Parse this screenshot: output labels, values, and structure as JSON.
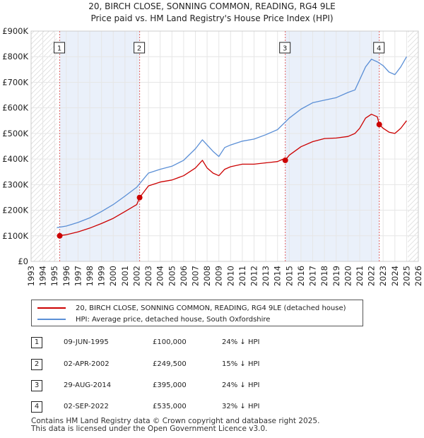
{
  "title_line1": "20, BIRCH CLOSE, SONNING COMMON, READING, RG4 9LE",
  "title_line2": "Price paid vs. HM Land Registry's House Price Index (HPI)",
  "chart_data": {
    "type": "line",
    "title": "20, BIRCH CLOSE, SONNING COMMON, READING, RG4 9LE — Price paid vs. HM Land Registry's House Price Index (HPI)",
    "xlabel": "",
    "ylabel": "",
    "xlim": [
      1993,
      2026
    ],
    "ylim": [
      0,
      900000
    ],
    "x_ticks": [
      1993,
      1994,
      1995,
      1996,
      1997,
      1998,
      1999,
      2000,
      2001,
      2002,
      2003,
      2004,
      2005,
      2006,
      2007,
      2008,
      2009,
      2010,
      2011,
      2012,
      2013,
      2014,
      2015,
      2016,
      2017,
      2018,
      2019,
      2020,
      2021,
      2022,
      2023,
      2024,
      2025,
      2026
    ],
    "y_ticks": [
      0,
      100000,
      200000,
      300000,
      400000,
      500000,
      600000,
      700000,
      800000,
      900000
    ],
    "y_tick_labels": [
      "£0",
      "£100K",
      "£200K",
      "£300K",
      "£400K",
      "£500K",
      "£600K",
      "£700K",
      "£800K",
      "£900K"
    ],
    "hatched_ranges": [
      [
        1993,
        1995.2
      ],
      [
        2025.1,
        2026
      ]
    ],
    "series": [
      {
        "name": "20, BIRCH CLOSE, SONNING COMMON, READING, RG4 9LE (detached house)",
        "color": "#cc0000",
        "x": [
          1995.2,
          1996,
          1997,
          1998,
          1999,
          2000,
          2001,
          2002.0,
          2002.25,
          2003,
          2004,
          2005,
          2006,
          2007,
          2007.6,
          2008,
          2008.5,
          2009,
          2009.5,
          2010,
          2011,
          2012,
          2013,
          2014,
          2014.5,
          2014.66,
          2015,
          2016,
          2017,
          2018,
          2019,
          2020,
          2020.6,
          2021,
          2021.5,
          2022,
          2022.5,
          2022.67,
          2023,
          2023.5,
          2024,
          2024.5,
          2025.0
        ],
        "y": [
          100000,
          104000,
          115000,
          130000,
          148000,
          168000,
          195000,
          222000,
          249500,
          295000,
          310000,
          318000,
          335000,
          365000,
          395000,
          365000,
          345000,
          335000,
          360000,
          370000,
          380000,
          380000,
          385000,
          390000,
          400000,
          395000,
          415000,
          448000,
          468000,
          480000,
          482000,
          488000,
          500000,
          520000,
          560000,
          575000,
          565000,
          535000,
          520000,
          505000,
          500000,
          520000,
          550000
        ]
      },
      {
        "name": "HPI: Average price, detached house, South Oxfordshire",
        "color": "#5b8fd6",
        "x": [
          1995.2,
          1996,
          1997,
          1998,
          1999,
          2000,
          2001,
          2002,
          2003,
          2004,
          2005,
          2006,
          2007,
          2007.6,
          2008,
          2008.5,
          2009,
          2009.5,
          2010,
          2011,
          2012,
          2013,
          2014,
          2015,
          2016,
          2017,
          2018,
          2019,
          2020,
          2020.6,
          2021,
          2021.5,
          2022,
          2022.5,
          2023,
          2023.5,
          2024,
          2024.5,
          2025.0
        ],
        "y": [
          132000,
          138000,
          152000,
          170000,
          195000,
          222000,
          255000,
          290000,
          345000,
          360000,
          372000,
          395000,
          440000,
          475000,
          455000,
          430000,
          410000,
          445000,
          455000,
          470000,
          478000,
          495000,
          515000,
          560000,
          595000,
          620000,
          630000,
          640000,
          660000,
          670000,
          710000,
          760000,
          790000,
          780000,
          765000,
          740000,
          730000,
          760000,
          800000
        ]
      }
    ],
    "transactions": [
      {
        "id": "1",
        "date": "09-JUN-1995",
        "x": 1995.44,
        "price": 100000,
        "price_label": "£100,000",
        "hpi_note": "24% ↓ HPI"
      },
      {
        "id": "2",
        "date": "02-APR-2002",
        "x": 2002.25,
        "price": 249500,
        "price_label": "£249,500",
        "hpi_note": "15% ↓ HPI"
      },
      {
        "id": "3",
        "date": "29-AUG-2014",
        "x": 2014.66,
        "price": 395000,
        "price_label": "£395,000",
        "hpi_note": "24% ↓ HPI"
      },
      {
        "id": "4",
        "date": "02-SEP-2022",
        "x": 2022.67,
        "price": 535000,
        "price_label": "£535,000",
        "hpi_note": "32% ↓ HPI"
      }
    ]
  },
  "legend": {
    "red_label": "20, BIRCH CLOSE, SONNING COMMON, READING, RG4 9LE (detached house)",
    "blue_label": "HPI: Average price, detached house, South Oxfordshire",
    "red_color": "#cc0000",
    "blue_color": "#5b8fd6"
  },
  "footer": {
    "line1": "Contains HM Land Registry data © Crown copyright and database right 2025.",
    "line2": "This data is licensed under the Open Government Licence v3.0."
  }
}
